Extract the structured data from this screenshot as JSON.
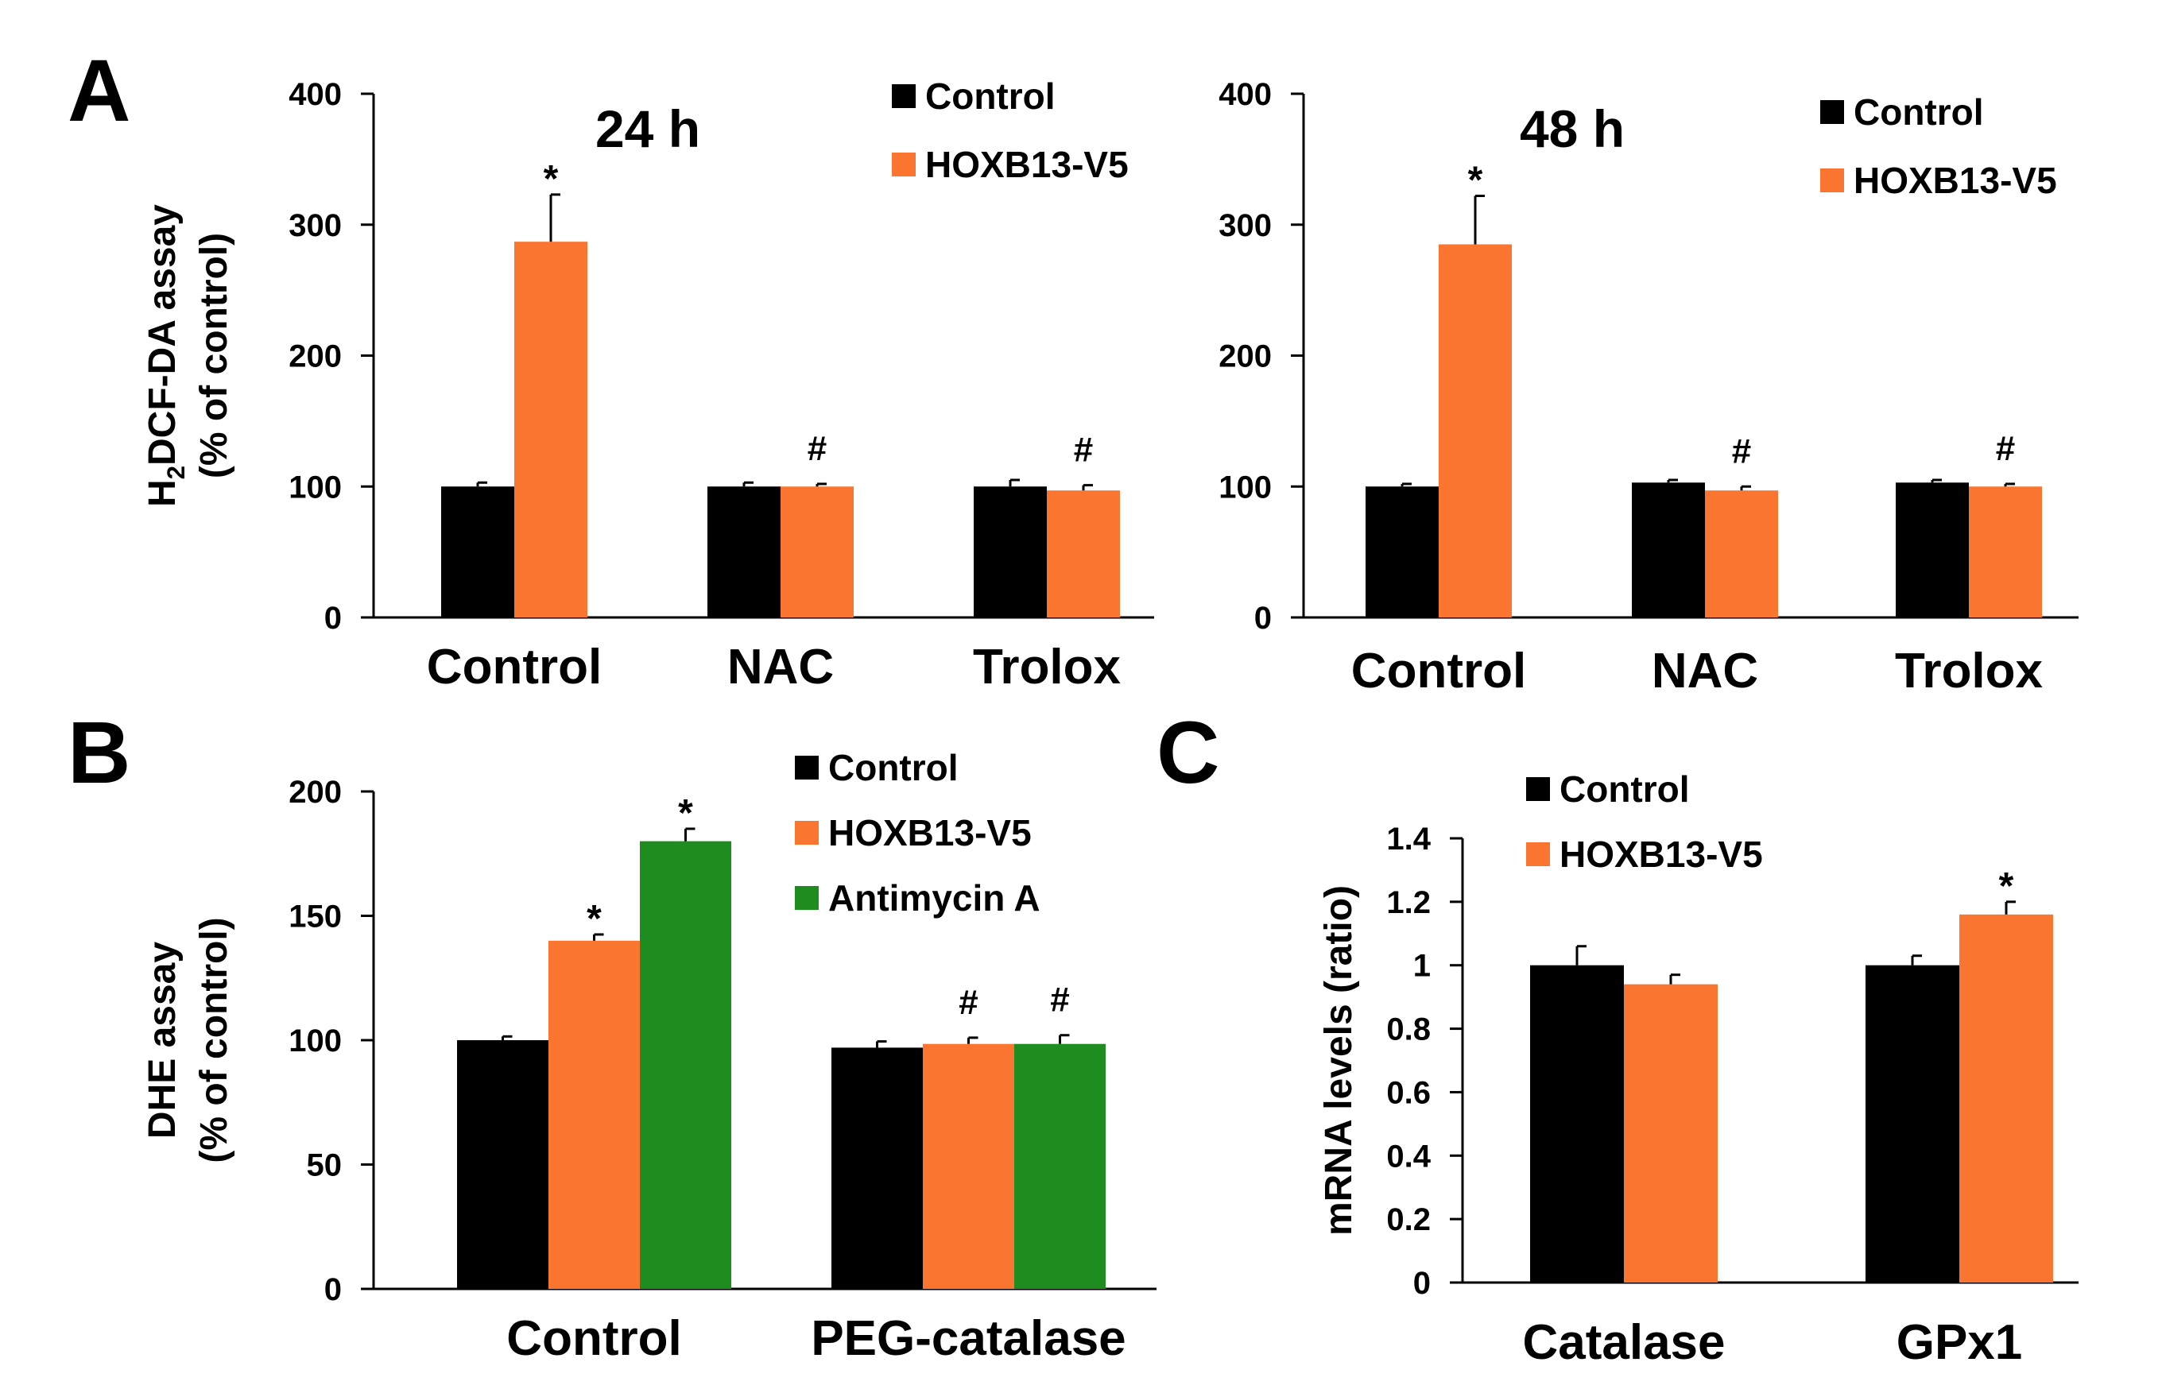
{
  "colors": {
    "control": "#000000",
    "hoxb13": "#FA7630",
    "antimycin": "#1F8C1F",
    "axis": "#000000"
  },
  "panel_labels": {
    "a": "A",
    "b": "B",
    "c": "C"
  },
  "chart_data": [
    {
      "id": "a24",
      "type": "bar",
      "title": "24 h",
      "ylabel_line1": "H",
      "ylabel_sub": "2",
      "ylabel_rest": "DCF-DA assay",
      "ylabel_line2": "(% of control)",
      "xlabel": "",
      "categories": [
        "Control",
        "NAC",
        "Trolox"
      ],
      "ylim": [
        0,
        400
      ],
      "yticks": [
        0,
        100,
        200,
        300,
        400
      ],
      "series": [
        {
          "name": "Control",
          "color": "#000000",
          "values": [
            100,
            100,
            100
          ],
          "errors": [
            3,
            3,
            5
          ]
        },
        {
          "name": "HOXB13-V5",
          "color": "#FA7630",
          "values": [
            287,
            100,
            97
          ],
          "errors": [
            36,
            2,
            4
          ]
        }
      ],
      "annotations": [
        {
          "series": 1,
          "category": 0,
          "text": "*"
        },
        {
          "series": 1,
          "category": 1,
          "text": "#"
        },
        {
          "series": 1,
          "category": 2,
          "text": "#"
        }
      ],
      "legend_position": "top-right"
    },
    {
      "id": "a48",
      "type": "bar",
      "title": "48 h",
      "xlabel": "",
      "ylabel_line1": "",
      "categories": [
        "Control",
        "NAC",
        "Trolox"
      ],
      "ylim": [
        0,
        400
      ],
      "yticks": [
        0,
        100,
        200,
        300,
        400
      ],
      "series": [
        {
          "name": "Control",
          "color": "#000000",
          "values": [
            100,
            103,
            103
          ],
          "errors": [
            2,
            2,
            2
          ]
        },
        {
          "name": "HOXB13-V5",
          "color": "#FA7630",
          "values": [
            285,
            97,
            100
          ],
          "errors": [
            37,
            3,
            2
          ]
        }
      ],
      "annotations": [
        {
          "series": 1,
          "category": 0,
          "text": "*"
        },
        {
          "series": 1,
          "category": 1,
          "text": "#"
        },
        {
          "series": 1,
          "category": 2,
          "text": "#"
        }
      ],
      "legend_position": "top-right"
    },
    {
      "id": "b",
      "type": "bar",
      "title": "",
      "ylabel_line1": "DHE assay",
      "ylabel_line2": "(% of control)",
      "xlabel": "",
      "categories": [
        "Control",
        "PEG-catalase"
      ],
      "ylim": [
        0,
        200
      ],
      "yticks": [
        0,
        50,
        100,
        150,
        200
      ],
      "series": [
        {
          "name": "Control",
          "color": "#000000",
          "values": [
            100,
            97
          ],
          "errors": [
            1.5,
            2.5
          ]
        },
        {
          "name": "HOXB13-V5",
          "color": "#FA7630",
          "values": [
            140,
            98.5
          ],
          "errors": [
            2.5,
            2.5
          ]
        },
        {
          "name": "Antimycin A",
          "color": "#1F8C1F",
          "values": [
            180,
            98.5
          ],
          "errors": [
            5,
            3.5
          ]
        }
      ],
      "annotations": [
        {
          "series": 1,
          "category": 0,
          "text": "*"
        },
        {
          "series": 2,
          "category": 0,
          "text": "*"
        },
        {
          "series": 1,
          "category": 1,
          "text": "#"
        },
        {
          "series": 2,
          "category": 1,
          "text": "#"
        }
      ],
      "legend_position": "top-right"
    },
    {
      "id": "c",
      "type": "bar",
      "title": "",
      "ylabel_line1": "mRNA levels (ratio)",
      "xlabel": "",
      "categories": [
        "Catalase",
        "GPx1"
      ],
      "ylim": [
        0,
        1.4
      ],
      "yticks": [
        "0",
        "0.2",
        "0.4",
        "0.6",
        "0.8",
        "1",
        "1.2",
        "1.4"
      ],
      "series": [
        {
          "name": "Control",
          "color": "#000000",
          "values": [
            1.0,
            1.0
          ],
          "errors": [
            0.06,
            0.03
          ]
        },
        {
          "name": "HOXB13-V5",
          "color": "#FA7630",
          "values": [
            0.94,
            1.16
          ],
          "errors": [
            0.03,
            0.04
          ]
        }
      ],
      "annotations": [
        {
          "series": 1,
          "category": 1,
          "text": "*"
        }
      ],
      "legend_position": "top-left"
    }
  ]
}
